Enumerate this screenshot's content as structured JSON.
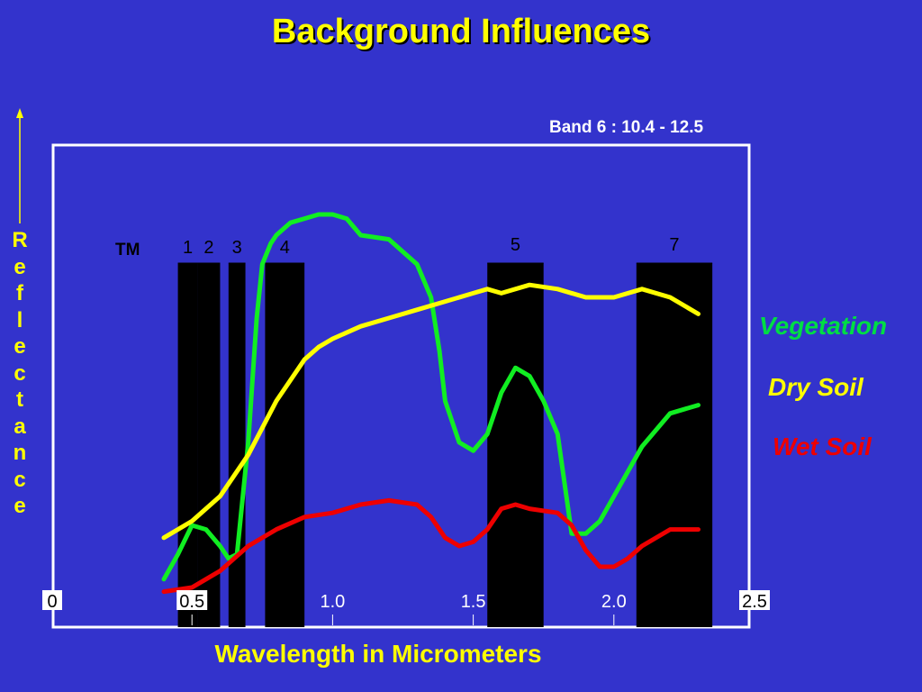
{
  "chart_data": {
    "type": "line",
    "title": "Background Influences",
    "xlabel": "Wavelength in Micrometers",
    "ylabel": "Reflectance",
    "annotation": "Band 6 : 10.4 - 12.5",
    "sensor_label": "TM",
    "xlim": [
      0,
      2.5
    ],
    "grid": false,
    "legend_position": "right",
    "x_ticks": [
      "0",
      "0.5",
      "1.0",
      "1.5",
      "2.0",
      "2.5"
    ],
    "x_tick_values": [
      0,
      0.5,
      1.0,
      1.5,
      2.0,
      2.5
    ],
    "bands": [
      {
        "label": "1",
        "start": 0.45,
        "end": 0.52
      },
      {
        "label": "2",
        "start": 0.52,
        "end": 0.6
      },
      {
        "label": "3",
        "start": 0.63,
        "end": 0.69
      },
      {
        "label": "4",
        "start": 0.76,
        "end": 0.9
      },
      {
        "label": "5",
        "start": 1.55,
        "end": 1.75
      },
      {
        "label": "7",
        "start": 2.08,
        "end": 2.35
      }
    ],
    "series": [
      {
        "name": "Vegetation",
        "color": "#11ee22",
        "x": [
          0.4,
          0.45,
          0.5,
          0.55,
          0.6,
          0.63,
          0.66,
          0.7,
          0.73,
          0.75,
          0.78,
          0.8,
          0.85,
          0.9,
          0.95,
          1.0,
          1.05,
          1.1,
          1.2,
          1.3,
          1.35,
          1.38,
          1.4,
          1.45,
          1.5,
          1.55,
          1.6,
          1.65,
          1.7,
          1.75,
          1.8,
          1.85,
          1.9,
          1.95,
          2.0,
          2.1,
          2.2,
          2.3
        ],
        "y": [
          0.07,
          0.13,
          0.2,
          0.19,
          0.15,
          0.12,
          0.13,
          0.4,
          0.7,
          0.83,
          0.88,
          0.9,
          0.93,
          0.94,
          0.95,
          0.95,
          0.94,
          0.9,
          0.89,
          0.83,
          0.75,
          0.62,
          0.5,
          0.4,
          0.38,
          0.42,
          0.52,
          0.58,
          0.56,
          0.5,
          0.42,
          0.18,
          0.18,
          0.21,
          0.27,
          0.39,
          0.47,
          0.49
        ]
      },
      {
        "name": "Dry Soil",
        "color": "#ffff00",
        "x": [
          0.4,
          0.5,
          0.6,
          0.7,
          0.8,
          0.9,
          0.95,
          1.0,
          1.1,
          1.2,
          1.3,
          1.4,
          1.5,
          1.55,
          1.6,
          1.7,
          1.8,
          1.9,
          2.0,
          2.1,
          2.2,
          2.3
        ],
        "y": [
          0.1,
          0.14,
          0.2,
          0.3,
          0.43,
          0.53,
          0.56,
          0.58,
          0.61,
          0.63,
          0.65,
          0.67,
          0.69,
          0.7,
          0.69,
          0.71,
          0.7,
          0.68,
          0.68,
          0.7,
          0.68,
          0.64
        ],
        "y_shift": 0.07
      },
      {
        "name": "Wet Soil",
        "color": "#ee0000",
        "x": [
          0.4,
          0.5,
          0.55,
          0.6,
          0.65,
          0.7,
          0.8,
          0.9,
          1.0,
          1.1,
          1.2,
          1.3,
          1.35,
          1.4,
          1.45,
          1.5,
          1.55,
          1.6,
          1.65,
          1.7,
          1.8,
          1.85,
          1.9,
          1.95,
          2.0,
          2.05,
          2.1,
          2.2,
          2.3
        ],
        "y": [
          0.04,
          0.05,
          0.07,
          0.09,
          0.12,
          0.15,
          0.19,
          0.22,
          0.23,
          0.25,
          0.26,
          0.25,
          0.22,
          0.17,
          0.15,
          0.16,
          0.19,
          0.24,
          0.25,
          0.24,
          0.23,
          0.2,
          0.14,
          0.1,
          0.1,
          0.12,
          0.15,
          0.19,
          0.19
        ]
      }
    ]
  }
}
